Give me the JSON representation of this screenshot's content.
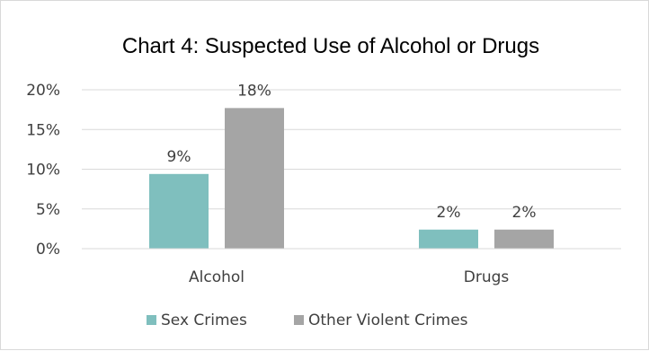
{
  "chart_data": {
    "type": "bar",
    "title": "Chart 4: Suspected Use of Alcohol or Drugs",
    "categories": [
      "Alcohol",
      "Drugs"
    ],
    "series": [
      {
        "name": "Sex Crimes",
        "values": [
          9.4,
          2.4
        ],
        "labels": [
          "9%",
          "2%"
        ],
        "color": "#7fbfbe"
      },
      {
        "name": "Other Violent Crimes",
        "values": [
          17.7,
          2.4
        ],
        "labels": [
          "18%",
          "2%"
        ],
        "color": "#a5a5a5"
      }
    ],
    "ylim": [
      0,
      20
    ],
    "yticks": [
      {
        "value": 0,
        "label": "0%"
      },
      {
        "value": 5,
        "label": "5%"
      },
      {
        "value": 10,
        "label": "10%"
      },
      {
        "value": 15,
        "label": "15%"
      },
      {
        "value": 20,
        "label": "20%"
      }
    ],
    "grid": true,
    "legend_position": "bottom"
  }
}
